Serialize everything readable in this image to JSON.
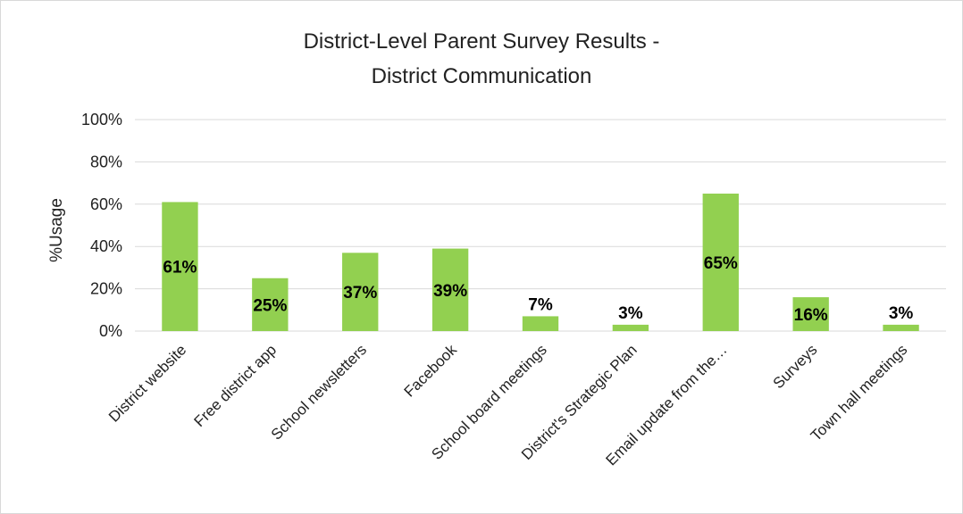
{
  "chart_data": {
    "type": "bar",
    "title_lines": [
      "District-Level Parent Survey Results -",
      "District Communication"
    ],
    "xlabel": "",
    "ylabel": "%Usage",
    "ylim": [
      0,
      100
    ],
    "y_ticks": [
      "0%",
      "20%",
      "40%",
      "60%",
      "80%",
      "100%"
    ],
    "grid": true,
    "legend": "none",
    "bar_color": "#92d050",
    "gridline_color": "#d9d9d9",
    "categories": [
      "District website",
      "Free district app",
      "School newsletters",
      "Facebook",
      "School board meetings",
      "District's Strategic Plan",
      "Email update from the…",
      "Surveys",
      "Town hall meetings"
    ],
    "values": [
      61,
      25,
      37,
      39,
      7,
      3,
      65,
      16,
      3
    ],
    "data_labels": [
      "61%",
      "25%",
      "37%",
      "39%",
      "7%",
      "3%",
      "65%",
      "16%",
      "3%"
    ]
  }
}
